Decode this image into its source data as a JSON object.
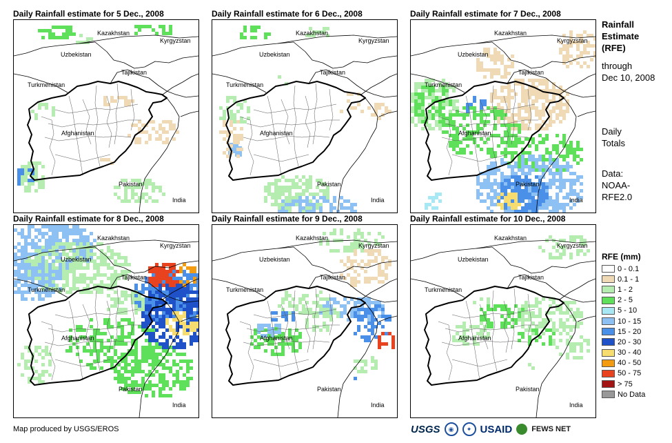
{
  "panels": [
    {
      "title": "Daily Rainfall estimate for 5 Dec., 2008",
      "date": "5 Dec., 2008"
    },
    {
      "title": "Daily Rainfall estimate for 6 Dec., 2008",
      "date": "6 Dec., 2008"
    },
    {
      "title": "Daily Rainfall estimate for 7 Dec., 2008",
      "date": "7 Dec., 2008"
    },
    {
      "title": "Daily Rainfall estimate for 8 Dec., 2008",
      "date": "8 Dec., 2008"
    },
    {
      "title": "Daily Rainfall estimate for 9 Dec., 2008",
      "date": "9 Dec., 2008"
    },
    {
      "title": "Daily Rainfall estimate for 10 Dec., 2008",
      "date": "10 Dec., 2008"
    }
  ],
  "countries": {
    "kazakhstan": "Kazakhstan",
    "kyrgyzstan": "Kyrgyzstan",
    "uzbekistan": "Uzbekistan",
    "tajikistan": "Tajikistan",
    "turkmenistan": "Turkmenistan",
    "afghanistan": "Afghanistan",
    "pakistan": "Pakistan",
    "india": "India"
  },
  "side": {
    "heading_line1": "Rainfall",
    "heading_line2": "Estimate",
    "heading_line3": "(RFE)",
    "through": "through",
    "through_date": "Dec 10, 2008",
    "daily_line1": "Daily",
    "daily_line2": "Totals",
    "data_line1": "Data:",
    "data_line2": "NOAA-",
    "data_line3": "RFE2.0"
  },
  "legend": {
    "title": "RFE (mm)",
    "items": [
      {
        "label": "0 - 0.1",
        "color": "#ffffff"
      },
      {
        "label": "0.1 - 1",
        "color": "#f0d9b5"
      },
      {
        "label": "1 - 2",
        "color": "#b5ecb0"
      },
      {
        "label": "2 - 5",
        "color": "#5ee05a"
      },
      {
        "label": "5 - 10",
        "color": "#a8e8f5"
      },
      {
        "label": "10 - 15",
        "color": "#8dc0f3"
      },
      {
        "label": "15 - 20",
        "color": "#4a90e8"
      },
      {
        "label": "20 - 30",
        "color": "#1f52c9"
      },
      {
        "label": "30 - 40",
        "color": "#f7dc6f"
      },
      {
        "label": "40 - 50",
        "color": "#f39c12"
      },
      {
        "label": "50 - 75",
        "color": "#e8421e"
      },
      {
        "label": "> 75",
        "color": "#a31515"
      },
      {
        "label": "No Data",
        "color": "#999999"
      }
    ]
  },
  "footer": {
    "credit": "Map produced by USGS/EROS",
    "logos": {
      "usgs": "USGS",
      "noaa": "NOAA",
      "usaid": "USAID",
      "fews": "FEWS NET"
    }
  }
}
